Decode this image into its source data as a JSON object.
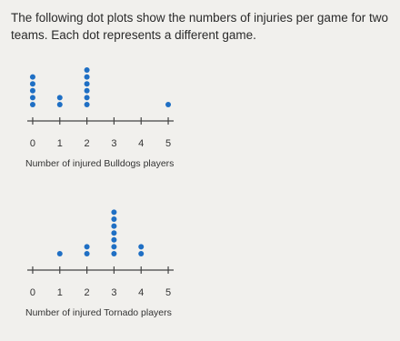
{
  "prompt": "The following dot plots show the numbers of injuries per game for two teams. Each dot represents a different game.",
  "chart_data": [
    {
      "type": "dot",
      "x": [
        0,
        1,
        2,
        3,
        4,
        5
      ],
      "values": [
        5,
        2,
        6,
        0,
        0,
        1
      ],
      "color": "#1f6fc4",
      "xlim": [
        -0.2,
        5.2
      ],
      "xticks": [
        0,
        1,
        2,
        3,
        4,
        5
      ],
      "xlabel": "Number of injured Bulldogs players"
    },
    {
      "type": "dot",
      "x": [
        0,
        1,
        2,
        3,
        4,
        5
      ],
      "values": [
        0,
        1,
        2,
        7,
        2,
        0
      ],
      "color": "#1f6fc4",
      "xlim": [
        -0.2,
        5.2
      ],
      "xticks": [
        0,
        1,
        2,
        3,
        4,
        5
      ],
      "xlabel": "Number of injured Tornado players"
    }
  ]
}
